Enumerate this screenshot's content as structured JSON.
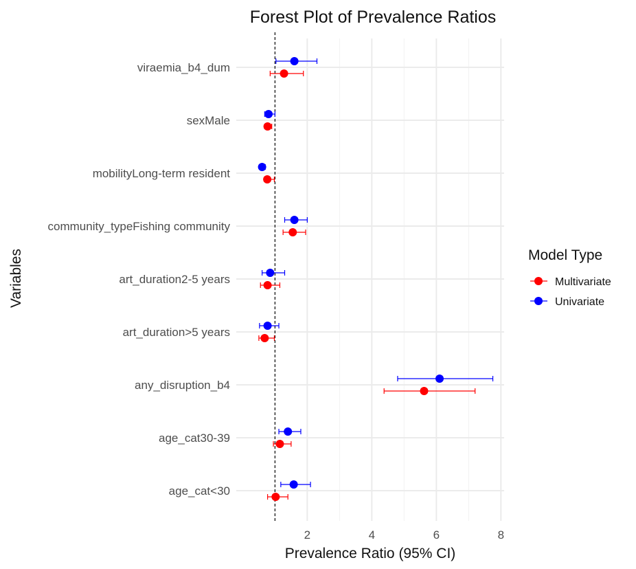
{
  "chart_data": {
    "type": "scatter",
    "title": "Forest Plot of Prevalence Ratios",
    "xlabel": "Prevalence Ratio (95% CI)",
    "ylabel": "Variables",
    "xlim": [
      -0.2,
      8.1
    ],
    "xticks": [
      2,
      4,
      6,
      8
    ],
    "reference_x": 1,
    "grid": true,
    "categories": [
      "viraemia_b4_dum",
      "sexMale",
      "mobilityLong-term resident",
      "community_typeFishing community",
      "art_duration2-5 years",
      "art_duration>5 years",
      "any_disruption_b4",
      "age_cat30-39",
      "age_cat<30"
    ],
    "legend": {
      "title": "Model Type",
      "position": "right"
    },
    "series": [
      {
        "name": "Multivariate",
        "color": "#ff0000",
        "points": [
          {
            "estimate": 1.28,
            "lower": 0.85,
            "upper": 1.88
          },
          {
            "estimate": 0.77,
            "lower": 0.68,
            "upper": 0.9
          },
          {
            "estimate": 0.76,
            "lower": 0.67,
            "upper": 0.98
          },
          {
            "estimate": 1.55,
            "lower": 1.25,
            "upper": 1.95
          },
          {
            "estimate": 0.77,
            "lower": 0.55,
            "upper": 1.15
          },
          {
            "estimate": 0.68,
            "lower": 0.5,
            "upper": 0.98
          },
          {
            "estimate": 5.62,
            "lower": 4.38,
            "upper": 7.2
          },
          {
            "estimate": 1.15,
            "lower": 0.95,
            "upper": 1.5
          },
          {
            "estimate": 1.02,
            "lower": 0.77,
            "upper": 1.4
          }
        ]
      },
      {
        "name": "Univariate",
        "color": "#0000ff",
        "points": [
          {
            "estimate": 1.6,
            "lower": 1.03,
            "upper": 2.3
          },
          {
            "estimate": 0.8,
            "lower": 0.68,
            "upper": 1.0
          },
          {
            "estimate": 0.6,
            "lower": 0.55,
            "upper": 0.7
          },
          {
            "estimate": 1.6,
            "lower": 1.3,
            "upper": 2.0
          },
          {
            "estimate": 0.85,
            "lower": 0.6,
            "upper": 1.3
          },
          {
            "estimate": 0.77,
            "lower": 0.52,
            "upper": 1.12
          },
          {
            "estimate": 6.1,
            "lower": 4.8,
            "upper": 7.75
          },
          {
            "estimate": 1.4,
            "lower": 1.12,
            "upper": 1.8
          },
          {
            "estimate": 1.58,
            "lower": 1.18,
            "upper": 2.1
          }
        ]
      }
    ]
  }
}
